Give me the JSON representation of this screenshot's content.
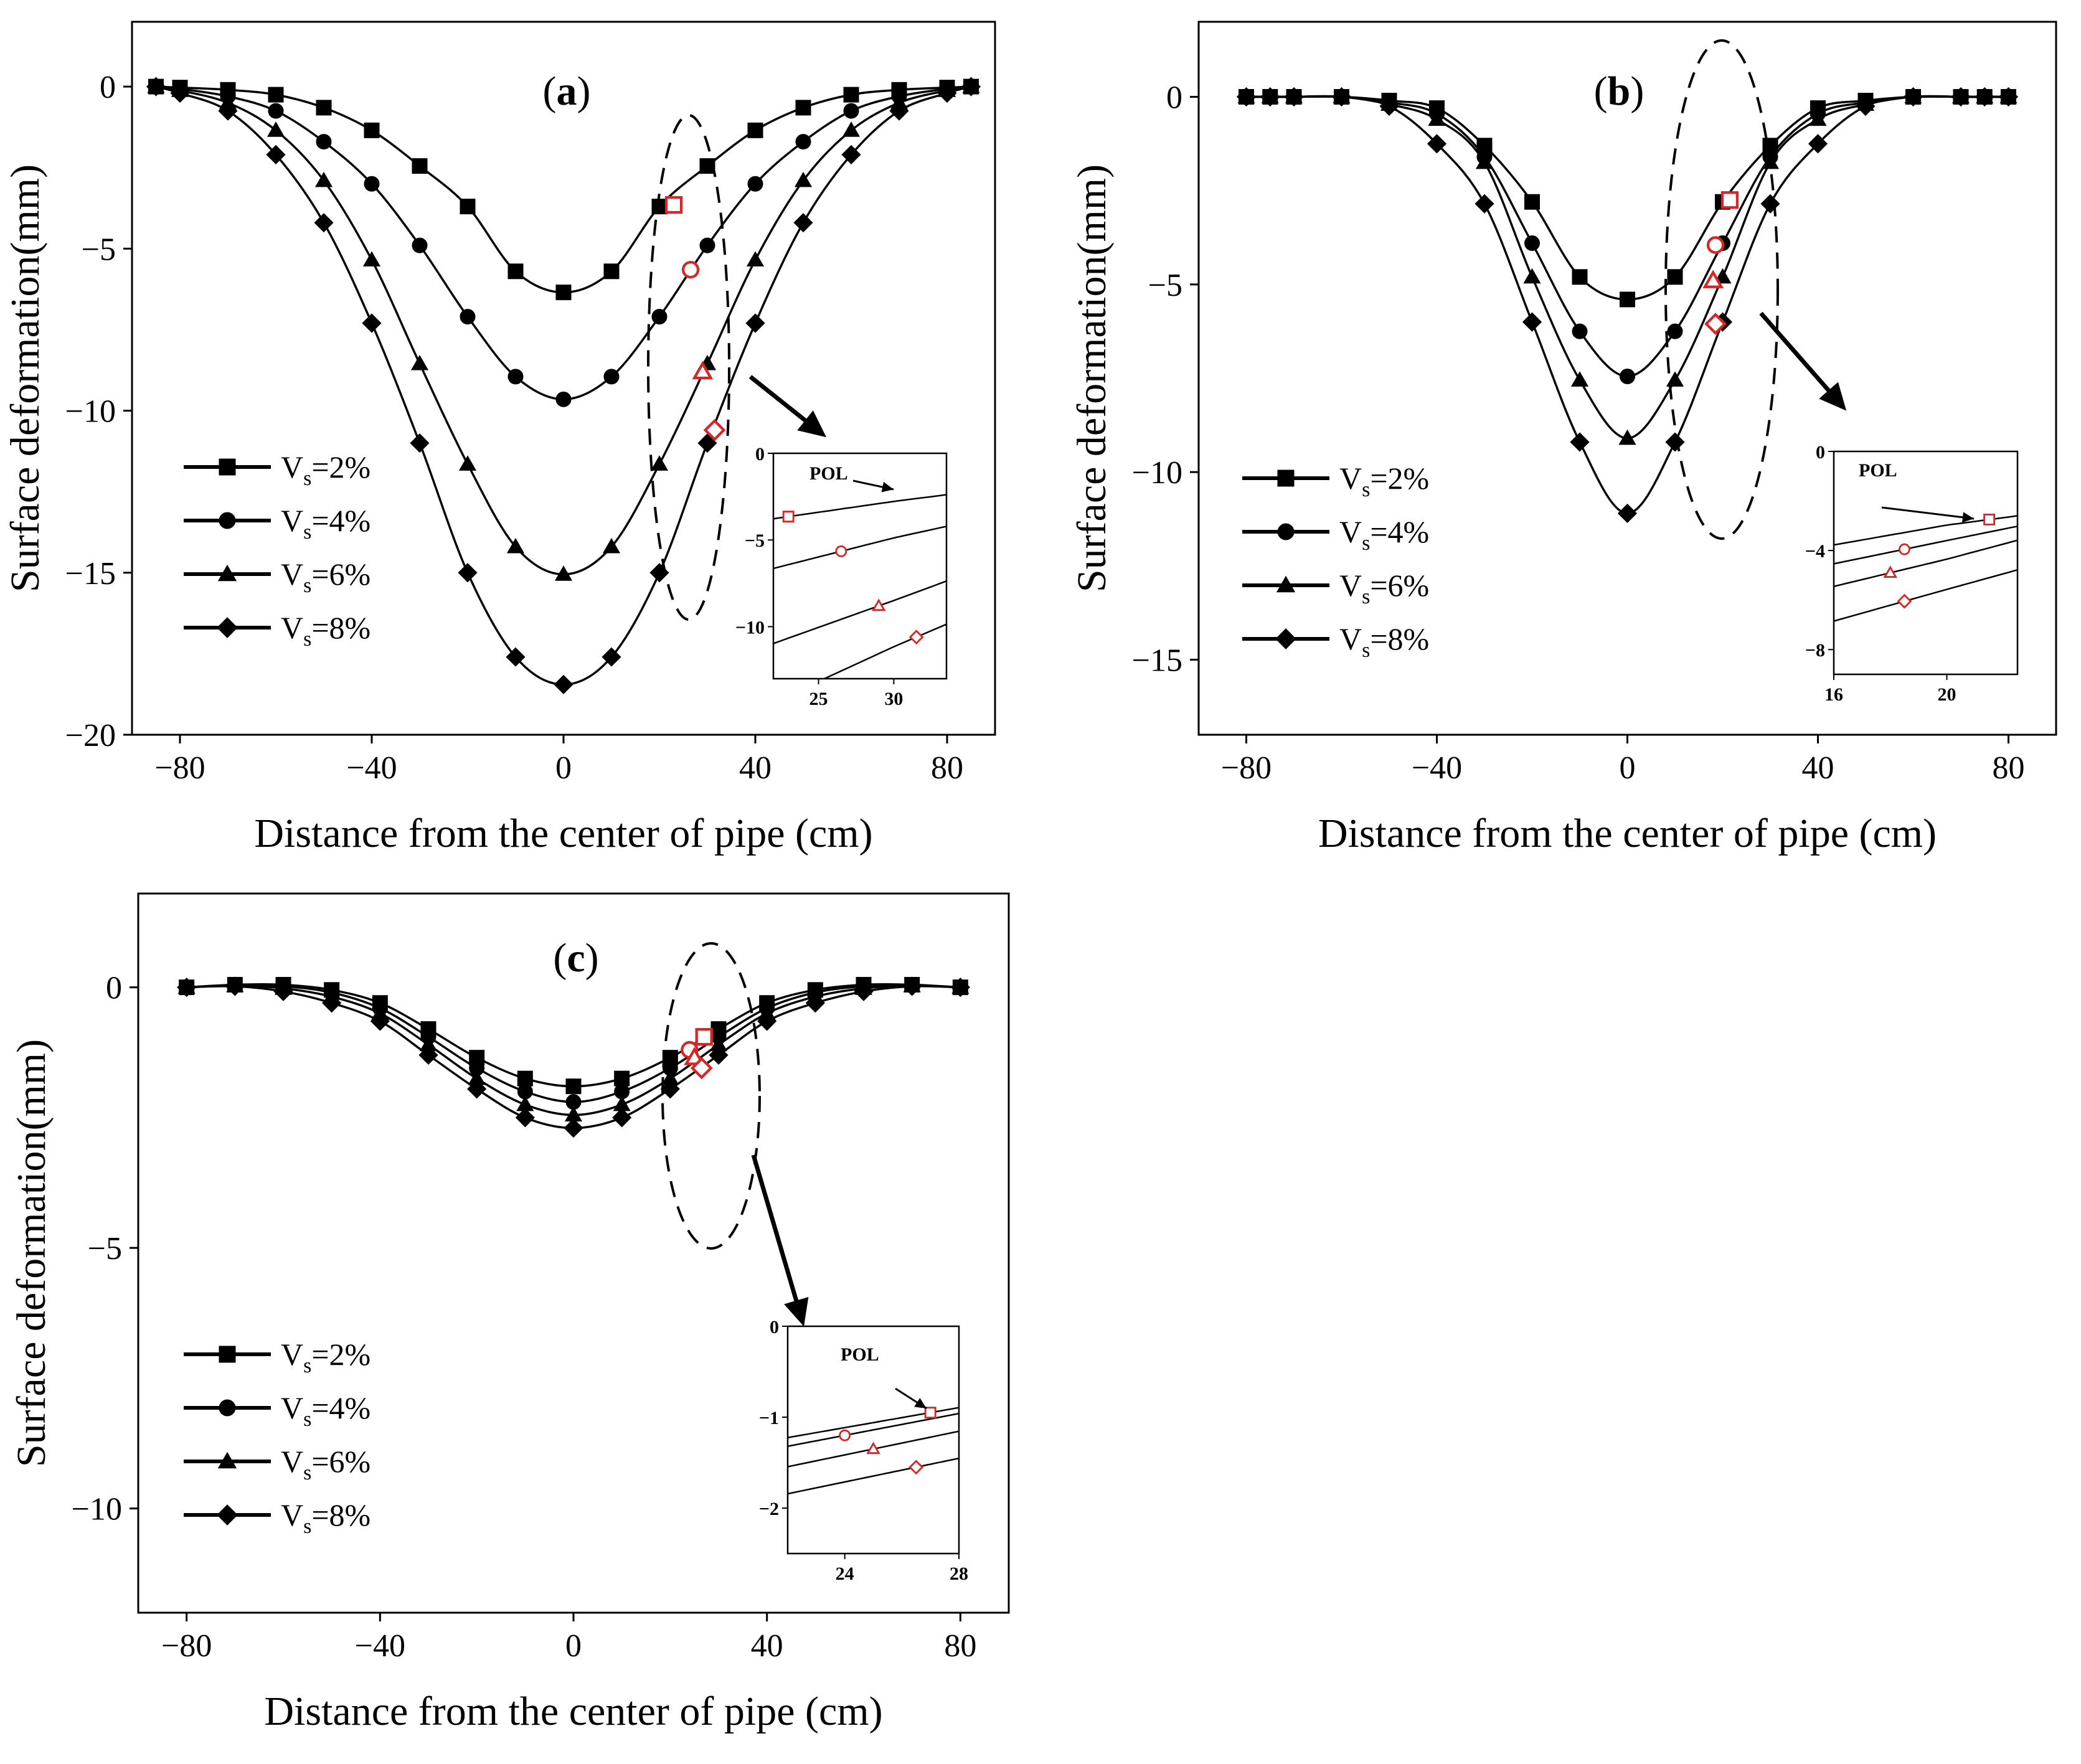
{
  "figure": {
    "xlabel": "Distance from the center of pipe (cm)",
    "ylabel": "Surface deformation(mm)"
  },
  "chart_data": [
    {
      "panel": "a",
      "type": "line",
      "xlim": [
        -90,
        90
      ],
      "ylim": [
        -20,
        2
      ],
      "xticks": [
        -80,
        -40,
        0,
        40,
        80
      ],
      "yticks": [
        0,
        -5,
        -10,
        -15,
        -20
      ],
      "x": [
        -85,
        -80,
        -70,
        -60,
        -50,
        -40,
        -30,
        -20,
        -10,
        0,
        10,
        20,
        30,
        40,
        50,
        60,
        70,
        80,
        85
      ],
      "series": [
        {
          "name": "Vs=2%",
          "marker": "square",
          "values": [
            0,
            -0.03,
            -0.1,
            -0.25,
            -0.65,
            -1.35,
            -2.45,
            -3.7,
            -5.7,
            -6.35,
            -5.7,
            -3.7,
            -2.45,
            -1.35,
            -0.65,
            -0.25,
            -0.1,
            -0.03,
            0
          ]
        },
        {
          "name": "Vs=4%",
          "marker": "circle",
          "values": [
            0,
            -0.07,
            -0.3,
            -0.75,
            -1.7,
            -3.0,
            -4.9,
            -7.1,
            -8.95,
            -9.65,
            -8.95,
            -7.1,
            -4.9,
            -3.0,
            -1.7,
            -0.75,
            -0.3,
            -0.07,
            0
          ]
        },
        {
          "name": "Vs=6%",
          "marker": "triangle",
          "values": [
            0,
            -0.12,
            -0.5,
            -1.35,
            -2.9,
            -5.35,
            -8.55,
            -11.65,
            -14.2,
            -15.05,
            -14.2,
            -11.65,
            -8.55,
            -5.35,
            -2.9,
            -1.35,
            -0.5,
            -0.12,
            0
          ]
        },
        {
          "name": "Vs=8%",
          "marker": "diamond",
          "values": [
            0,
            -0.2,
            -0.75,
            -2.1,
            -4.2,
            -7.3,
            -11.0,
            -15.0,
            -17.6,
            -18.45,
            -17.6,
            -15.0,
            -11.0,
            -7.3,
            -4.2,
            -2.1,
            -0.75,
            -0.2,
            0
          ]
        }
      ],
      "pol_points": [
        {
          "series": "Vs=2%",
          "marker": "square",
          "x": 23,
          "y": -3.65
        },
        {
          "series": "Vs=4%",
          "marker": "circle",
          "x": 26.5,
          "y": -5.65
        },
        {
          "series": "Vs=6%",
          "marker": "triangle",
          "x": 29,
          "y": -8.8
        },
        {
          "series": "Vs=8%",
          "marker": "diamond",
          "x": 31.5,
          "y": -10.6
        }
      ],
      "inset": {
        "title": "POL",
        "xlim": [
          22,
          33.5
        ],
        "ylim": [
          -13,
          0
        ],
        "xticks": [
          25,
          30
        ],
        "yticks": [
          0,
          -5,
          -10
        ]
      }
    },
    {
      "panel": "b",
      "type": "line",
      "xlim": [
        -90,
        90
      ],
      "ylim": [
        -17,
        2
      ],
      "xticks": [
        -80,
        -40,
        0,
        40,
        80
      ],
      "yticks": [
        0,
        -5,
        -10,
        -15
      ],
      "x": [
        -80,
        -75,
        -70,
        -60,
        -50,
        -40,
        -30,
        -20,
        -10,
        0,
        10,
        20,
        30,
        40,
        50,
        60,
        70,
        75,
        80
      ],
      "series": [
        {
          "name": "Vs=2%",
          "marker": "square",
          "values": [
            0,
            0,
            0,
            0,
            -0.1,
            -0.3,
            -1.3,
            -2.8,
            -4.8,
            -5.4,
            -4.8,
            -2.8,
            -1.3,
            -0.3,
            -0.1,
            0,
            0,
            0,
            0
          ]
        },
        {
          "name": "Vs=4%",
          "marker": "circle",
          "values": [
            0,
            0,
            0,
            0,
            -0.15,
            -0.45,
            -1.6,
            -3.9,
            -6.25,
            -7.45,
            -6.25,
            -3.9,
            -1.6,
            -0.45,
            -0.15,
            0,
            0,
            0,
            0
          ]
        },
        {
          "name": "Vs=6%",
          "marker": "triangle",
          "values": [
            0,
            0,
            0,
            0,
            -0.2,
            -0.6,
            -1.75,
            -4.8,
            -7.55,
            -9.1,
            -7.55,
            -4.8,
            -1.75,
            -0.6,
            -0.2,
            0,
            0,
            0,
            0
          ]
        },
        {
          "name": "Vs=8%",
          "marker": "diamond",
          "values": [
            0,
            0,
            0,
            0,
            -0.25,
            -1.25,
            -2.85,
            -6.0,
            -9.2,
            -11.1,
            -9.2,
            -6.0,
            -2.85,
            -1.25,
            -0.25,
            0,
            0,
            0,
            0
          ]
        }
      ],
      "pol_points": [
        {
          "series": "Vs=2%",
          "marker": "square",
          "x": 21.5,
          "y": -2.75
        },
        {
          "series": "Vs=4%",
          "marker": "circle",
          "x": 18.5,
          "y": -3.95
        },
        {
          "series": "Vs=6%",
          "marker": "triangle",
          "x": 18,
          "y": -4.9
        },
        {
          "series": "Vs=8%",
          "marker": "diamond",
          "x": 18.5,
          "y": -6.05
        }
      ],
      "inset": {
        "title": "POL",
        "xlim": [
          16,
          22.5
        ],
        "ylim": [
          -9,
          0
        ],
        "xticks": [
          16,
          20
        ],
        "yticks": [
          0,
          -4,
          -8
        ]
      }
    },
    {
      "panel": "c",
      "type": "line",
      "xlim": [
        -90,
        90
      ],
      "ylim": [
        -12,
        1.8
      ],
      "xticks": [
        -80,
        -40,
        0,
        40,
        80
      ],
      "yticks": [
        0,
        -5,
        -10
      ],
      "x": [
        -80,
        -70,
        -60,
        -50,
        -40,
        -30,
        -20,
        -10,
        0,
        10,
        20,
        30,
        40,
        50,
        60,
        70,
        80
      ],
      "series": [
        {
          "name": "Vs=2%",
          "marker": "square",
          "values": [
            0,
            0.05,
            0.05,
            -0.05,
            -0.3,
            -0.8,
            -1.35,
            -1.75,
            -1.9,
            -1.75,
            -1.35,
            -0.8,
            -0.3,
            -0.05,
            0.05,
            0.05,
            0
          ]
        },
        {
          "name": "Vs=4%",
          "marker": "circle",
          "values": [
            0,
            0.04,
            0.02,
            -0.1,
            -0.4,
            -0.95,
            -1.55,
            -2.0,
            -2.2,
            -2.0,
            -1.55,
            -0.95,
            -0.4,
            -0.1,
            0.02,
            0.04,
            0
          ]
        },
        {
          "name": "Vs=6%",
          "marker": "triangle",
          "values": [
            0,
            0.03,
            -0.02,
            -0.18,
            -0.5,
            -1.1,
            -1.75,
            -2.25,
            -2.45,
            -2.25,
            -1.75,
            -1.1,
            -0.5,
            -0.18,
            -0.02,
            0.03,
            0
          ]
        },
        {
          "name": "Vs=8%",
          "marker": "diamond",
          "values": [
            0,
            0.02,
            -0.08,
            -0.3,
            -0.65,
            -1.3,
            -1.95,
            -2.5,
            -2.7,
            -2.5,
            -1.95,
            -1.3,
            -0.65,
            -0.3,
            -0.08,
            0.02,
            0
          ]
        }
      ],
      "pol_points": [
        {
          "series": "Vs=2%",
          "marker": "square",
          "x": 27,
          "y": -0.95
        },
        {
          "series": "Vs=4%",
          "marker": "circle",
          "x": 24,
          "y": -1.2
        },
        {
          "series": "Vs=6%",
          "marker": "triangle",
          "x": 25,
          "y": -1.35
        },
        {
          "series": "Vs=8%",
          "marker": "diamond",
          "x": 26.5,
          "y": -1.55
        }
      ],
      "inset": {
        "title": "POL",
        "xlim": [
          22,
          28
        ],
        "ylim": [
          -2.5,
          0
        ],
        "xticks": [
          24,
          28
        ],
        "yticks": [
          0,
          -1,
          -2
        ]
      }
    }
  ],
  "colors": {
    "line": "#000000",
    "pol_marker": "#d62728"
  }
}
